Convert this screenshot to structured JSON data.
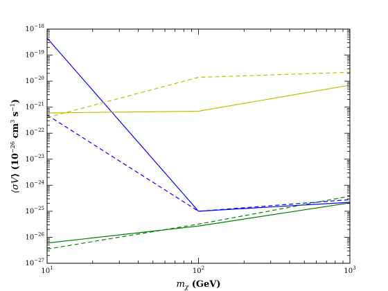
{
  "chart_data": {
    "type": "line",
    "xlabel": "m_χ (GeV)",
    "ylabel": "⟨σV⟩ (10^−26 cm^3 s^−1)",
    "x_scale": "log",
    "y_scale": "log",
    "xlim": [
      10,
      1000
    ],
    "ylim": [
      1e-27,
      1e-18
    ],
    "grid": false,
    "x_ticks": [
      {
        "value": 10,
        "base": "10",
        "exp": "1"
      },
      {
        "value": 100,
        "base": "10",
        "exp": "2"
      },
      {
        "value": 1000,
        "base": "10",
        "exp": "3"
      }
    ],
    "y_ticks": [
      {
        "value": 1e-27,
        "base": "10",
        "exp": "−27"
      },
      {
        "value": 1e-26,
        "base": "10",
        "exp": "−26"
      },
      {
        "value": 1e-25,
        "base": "10",
        "exp": "−25"
      },
      {
        "value": 1e-24,
        "base": "10",
        "exp": "−24"
      },
      {
        "value": 1e-23,
        "base": "10",
        "exp": "−23"
      },
      {
        "value": 1e-22,
        "base": "10",
        "exp": "−22"
      },
      {
        "value": 1e-21,
        "base": "10",
        "exp": "−21"
      },
      {
        "value": 1e-20,
        "base": "10",
        "exp": "−20"
      },
      {
        "value": 1e-19,
        "base": "10",
        "exp": "−19"
      },
      {
        "value": 1e-18,
        "base": "10",
        "exp": "−18"
      }
    ],
    "series": [
      {
        "color": "#0000ff",
        "style": "solid",
        "x": [
          10,
          100,
          1000
        ],
        "y": [
          4.5e-19,
          1e-25,
          2.2e-25
        ]
      },
      {
        "color": "#0000ff",
        "style": "dashed",
        "x": [
          10,
          100,
          1000
        ],
        "y": [
          5e-22,
          1e-25,
          2.8e-25
        ]
      },
      {
        "color": "#bfbf00",
        "style": "solid",
        "x": [
          10,
          100,
          1000
        ],
        "y": [
          6e-22,
          7e-22,
          7e-21
        ]
      },
      {
        "color": "#bfbf00",
        "style": "dashed",
        "x": [
          10,
          100,
          1000
        ],
        "y": [
          4e-22,
          1.4e-20,
          2.2e-20
        ]
      },
      {
        "color": "#007f00",
        "style": "solid",
        "x": [
          10,
          100,
          1000
        ],
        "y": [
          6e-27,
          2.7e-26,
          2.1e-25
        ]
      },
      {
        "color": "#007f00",
        "style": "dashed",
        "x": [
          10,
          100,
          1000
        ],
        "y": [
          3.5e-27,
          3.2e-26,
          3.8e-25
        ]
      }
    ]
  }
}
